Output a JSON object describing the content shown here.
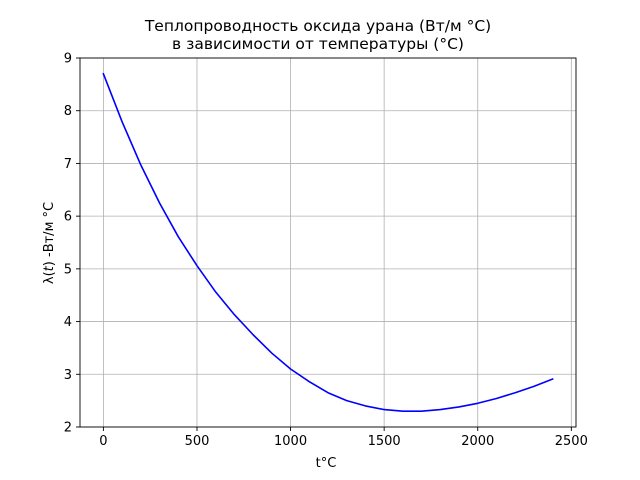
{
  "chart_data": {
    "type": "line",
    "title_line1": "Теплопроводность оксида урана (Вт/м °С)",
    "title_line2": "в зависимости от температуры (°С)",
    "xlabel": "t°C",
    "ylabel_prefix": "λ(",
    "ylabel_var": "t",
    "ylabel_suffix": ") -Вт/м °С",
    "xlim": [
      -125,
      2525
    ],
    "ylim": [
      2,
      9
    ],
    "xticks": [
      0,
      500,
      1000,
      1500,
      2000,
      2500
    ],
    "yticks": [
      2,
      3,
      4,
      5,
      6,
      7,
      8,
      9
    ],
    "grid": true,
    "series": [
      {
        "color": "#0000ff",
        "x": [
          0,
          100,
          200,
          300,
          400,
          500,
          600,
          700,
          800,
          900,
          1000,
          1100,
          1200,
          1300,
          1400,
          1500,
          1600,
          1700,
          1800,
          1900,
          2000,
          2100,
          2200,
          2300,
          2400
        ],
        "y": [
          8.7,
          7.79,
          6.97,
          6.25,
          5.61,
          5.06,
          4.56,
          4.13,
          3.75,
          3.4,
          3.1,
          2.86,
          2.65,
          2.5,
          2.4,
          2.33,
          2.3,
          2.3,
          2.33,
          2.38,
          2.45,
          2.54,
          2.65,
          2.77,
          2.91
        ]
      }
    ]
  }
}
